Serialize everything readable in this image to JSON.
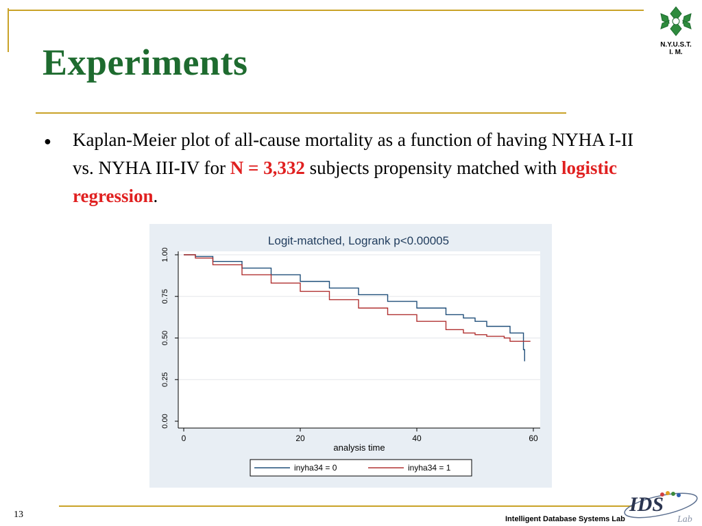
{
  "slide": {
    "title": "Experiments",
    "page_number": "13",
    "footer_lab": "Intelligent Database Systems Lab",
    "logo_caption": "N.Y.U.S.T.\nI. M.",
    "ids_logo_text": "IDS",
    "ids_logo_sub": "Lab"
  },
  "bullet": {
    "part1": "Kaplan-Meier plot of all-cause mortality as a function of having NYHA I-II vs. NYHA III-IV for ",
    "highlight1": "N = 3,332",
    "part2": " subjects propensity matched with ",
    "highlight2": "logistic regression",
    "part3": "."
  },
  "colors": {
    "title_green": "#1e6b2f",
    "accent_gold": "#c9a227",
    "highlight_red": "#e02020",
    "series_blue": "#1f4e79",
    "series_red": "#b03030"
  },
  "chart_data": {
    "type": "line",
    "title": "Logit-matched, Logrank p<0.00005",
    "xlabel": "analysis time",
    "ylabel": "",
    "xlim": [
      0,
      60
    ],
    "ylim": [
      0,
      1
    ],
    "x_ticks": [
      "0",
      "20",
      "40",
      "60"
    ],
    "y_ticks": [
      "0.00",
      "0.25",
      "0.50",
      "0.75",
      "1.00"
    ],
    "grid": true,
    "legend_position": "bottom",
    "series": [
      {
        "name": "inyha34 = 0",
        "color": "#1f4e79",
        "x": [
          0,
          2,
          5,
          10,
          15,
          20,
          25,
          30,
          35,
          40,
          45,
          48,
          50,
          52,
          55,
          56,
          57,
          58,
          58.3,
          58.5
        ],
        "y": [
          1.0,
          0.99,
          0.96,
          0.92,
          0.88,
          0.84,
          0.8,
          0.76,
          0.72,
          0.68,
          0.64,
          0.62,
          0.6,
          0.57,
          0.57,
          0.53,
          0.53,
          0.53,
          0.43,
          0.36
        ]
      },
      {
        "name": "inyha34 = 1",
        "color": "#b03030",
        "x": [
          0,
          2,
          5,
          10,
          15,
          20,
          25,
          30,
          35,
          40,
          45,
          48,
          50,
          52,
          55,
          56,
          58,
          59.5
        ],
        "y": [
          1.0,
          0.98,
          0.94,
          0.88,
          0.83,
          0.78,
          0.73,
          0.68,
          0.64,
          0.6,
          0.55,
          0.53,
          0.52,
          0.51,
          0.5,
          0.48,
          0.48,
          0.48
        ]
      }
    ]
  }
}
